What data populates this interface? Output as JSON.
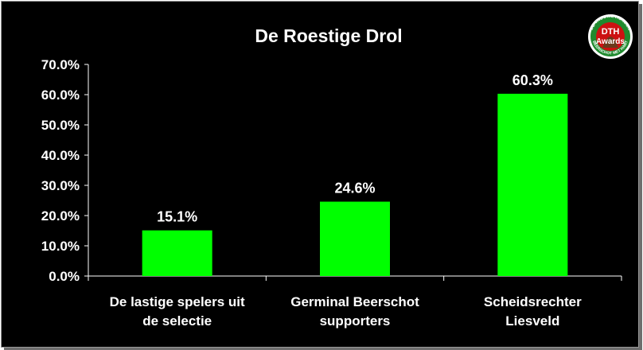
{
  "chart_data": {
    "type": "bar",
    "title": "De Roestige Drol",
    "categories": [
      [
        "De lastige spelers uit",
        "de selectie"
      ],
      [
        "Germinal Beerschot",
        "supporters"
      ],
      [
        "Scheidsrechter",
        "Liesveld"
      ]
    ],
    "values": [
      15.1,
      24.6,
      60.3
    ],
    "data_labels": [
      "15.1%",
      "24.6%",
      "60.3%"
    ],
    "ylim": [
      0,
      70
    ],
    "yticks": [
      0,
      10,
      20,
      30,
      40,
      50,
      60,
      70
    ],
    "ytick_labels": [
      "0.0%",
      "10.0%",
      "20.0%",
      "30.0%",
      "40.0%",
      "50.0%",
      "60.0%",
      "70.0%"
    ],
    "xlabel": "",
    "ylabel": "",
    "grid": false,
    "legend": "none",
    "bar_color": "#00ff00",
    "background_color": "#000000"
  },
  "logo": {
    "icon": "dth-awards-seal",
    "text_top": "DTH",
    "text_main": "Awards",
    "ring_text_top": "DE TROUWE HONDEN",
    "ring_text_bottom": "BEERSCHOT MET HART"
  }
}
